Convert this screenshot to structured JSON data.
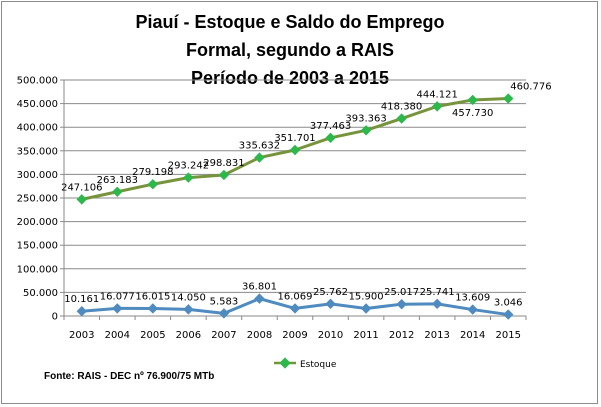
{
  "chart_data": {
    "type": "line",
    "title_lines": [
      "Piauí - Estoque e Saldo do Emprego",
      "Formal, segundo a RAIS",
      "Período de 2003 a 2015"
    ],
    "categories": [
      "2003",
      "2004",
      "2005",
      "2006",
      "2007",
      "2008",
      "2009",
      "2010",
      "2011",
      "2012",
      "2013",
      "2014",
      "2015"
    ],
    "y_ticks": [
      "0",
      "50.000",
      "100.000",
      "150.000",
      "200.000",
      "250.000",
      "300.000",
      "350.000",
      "400.000",
      "450.000",
      "500.000"
    ],
    "ylim": [
      0,
      500000
    ],
    "grid": true,
    "legend_position": "bottom",
    "series": [
      {
        "name": "Estoque",
        "color": "#77933c",
        "marker_color": "#2db84c",
        "marker": "diamond",
        "values": [
          247106,
          263183,
          279198,
          293242,
          298831,
          335632,
          351701,
          377463,
          393363,
          418380,
          444121,
          457730,
          460776
        ],
        "labels": [
          "247.106",
          "263.183",
          "279.198",
          "293.242",
          "298.831",
          "335.632",
          "351.701",
          "377.463",
          "393.363",
          "418.380",
          "444.121",
          "457.730",
          "460.776"
        ]
      },
      {
        "color": "#4f8bbf",
        "marker_color": "#4f8bbf",
        "marker": "diamond",
        "values": [
          10161,
          16077,
          16015,
          14050,
          5583,
          36801,
          16069,
          25762,
          15900,
          25017,
          25741,
          13609,
          3046
        ],
        "labels": [
          "10.161",
          "16.077",
          "16.015",
          "14.050",
          "5.583",
          "36.801",
          "16.069",
          "25.762",
          "15.900",
          "25.017",
          "25.741",
          "13.609",
          "3.046"
        ]
      }
    ]
  },
  "footer": {
    "source": "Fonte: RAIS - DEC nº 76.900/75 MTb"
  }
}
